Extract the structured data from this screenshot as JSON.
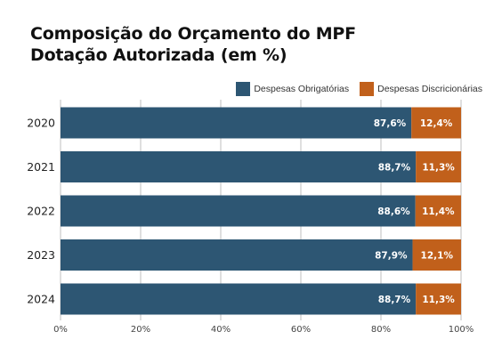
{
  "chart": {
    "title_line1": "Composição do Orçamento do MPF",
    "title_line2": "Dotação Autorizada (em %)"
  },
  "colors": {
    "obrigatorias": "#2d5673",
    "discricionarias": "#c1601b",
    "grid": "#bfbfbf"
  },
  "chart_data": {
    "type": "bar",
    "orientation": "horizontal",
    "stacked": true,
    "title": "Composição do Orçamento do MPF Dotação Autorizada (em %)",
    "xlabel": "",
    "ylabel": "",
    "categories": [
      "2020",
      "2021",
      "2022",
      "2023",
      "2024"
    ],
    "series": [
      {
        "name": "Despesas Obrigatórias",
        "values": [
          87.6,
          88.7,
          88.6,
          87.9,
          88.7
        ],
        "labels": [
          "87,6%",
          "88,7%",
          "88,6%",
          "87,9%",
          "88,7%"
        ]
      },
      {
        "name": "Despesas Discricionárias",
        "values": [
          12.4,
          11.3,
          11.4,
          12.1,
          11.3
        ],
        "labels": [
          "12,4%",
          "11,3%",
          "11,4%",
          "12,1%",
          "11,3%"
        ]
      }
    ],
    "xlim": [
      0,
      100
    ],
    "xticks": [
      "0%",
      "20%",
      "40%",
      "60%",
      "80%",
      "100%"
    ],
    "legend_position": "top-right",
    "grid": "vertical"
  }
}
